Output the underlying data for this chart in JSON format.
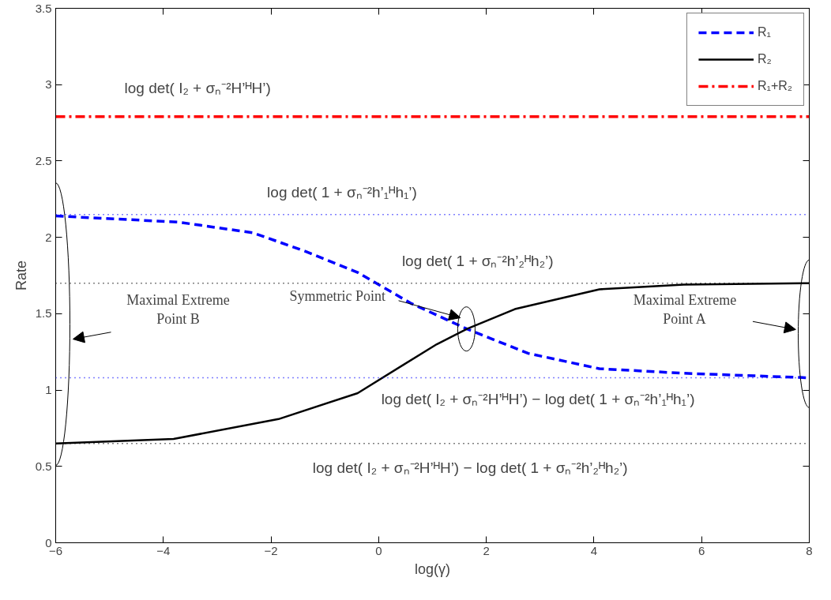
{
  "chart_data": {
    "type": "line",
    "xlabel": "log(γ)",
    "ylabel": "Rate",
    "xlim": [
      -6,
      8
    ],
    "xticks": [
      {
        "value": -6,
        "label": "−6"
      },
      {
        "value": -4,
        "label": "−4"
      },
      {
        "value": -2,
        "label": "−2"
      },
      0,
      2,
      4,
      6,
      8
    ],
    "ylim": [
      0,
      3.5
    ],
    "yticks": [
      0,
      0.5,
      1,
      1.5,
      2,
      2.5,
      3,
      3.5
    ],
    "grid": false,
    "legend": "top right",
    "series": [
      {
        "name": "R₁",
        "color": "#0000ff",
        "line_style": "dashed",
        "x": [
          -6,
          -3.72,
          -2.34,
          -1.37,
          -0.39,
          0.59,
          1.64,
          2.78,
          4.1,
          5.67,
          8
        ],
        "values": [
          2.14,
          2.1,
          2.03,
          1.91,
          1.77,
          1.57,
          1.4,
          1.24,
          1.14,
          1.11,
          1.08
        ]
      },
      {
        "name": "R₂",
        "color": "#000000",
        "line_style": "solid",
        "x": [
          -6,
          -3.81,
          -1.86,
          -0.39,
          1.08,
          1.64,
          2.53,
          4.1,
          5.67,
          8
        ],
        "values": [
          0.65,
          0.68,
          0.81,
          0.98,
          1.3,
          1.4,
          1.53,
          1.66,
          1.69,
          1.7
        ]
      },
      {
        "name": "R₁+R₂",
        "color": "#ff0000",
        "line_style": "dashdot",
        "x": [
          -6,
          8
        ],
        "values": [
          2.79,
          2.79
        ]
      }
    ],
    "ref_lines": [
      {
        "axis": "y",
        "value": 2.15,
        "label": "log det( 1 + σₙ⁻²h’₁ᴴh₁’)",
        "color": "#0000ff",
        "line_style": "dotted"
      },
      {
        "axis": "y",
        "value": 1.7,
        "label": "log det( 1 + σₙ⁻²h’₂ᴴh₂’)",
        "color": "#000000",
        "line_style": "dotted"
      },
      {
        "axis": "y",
        "value": 1.08,
        "label": "log det( I₂ + σₙ⁻²H’ᴴH’) − log det( 1 + σₙ⁻²h’₁ᴴh₁’)",
        "color": "#0000ff",
        "line_style": "dotted"
      },
      {
        "axis": "y",
        "value": 0.65,
        "label": "log det( I₂ + σₙ⁻²H’ᴴH’) − log det( 1 + σₙ⁻²h’₂ᴴh₂’)",
        "color": "#000000",
        "line_style": "dotted"
      }
    ],
    "annotations": [
      "log det( I₂ + σₙ⁻²H’ᴴH’)",
      "Maximal Extreme\nPoint B",
      "Symmetric Point",
      "Maximal Extreme\nPoint A"
    ]
  }
}
